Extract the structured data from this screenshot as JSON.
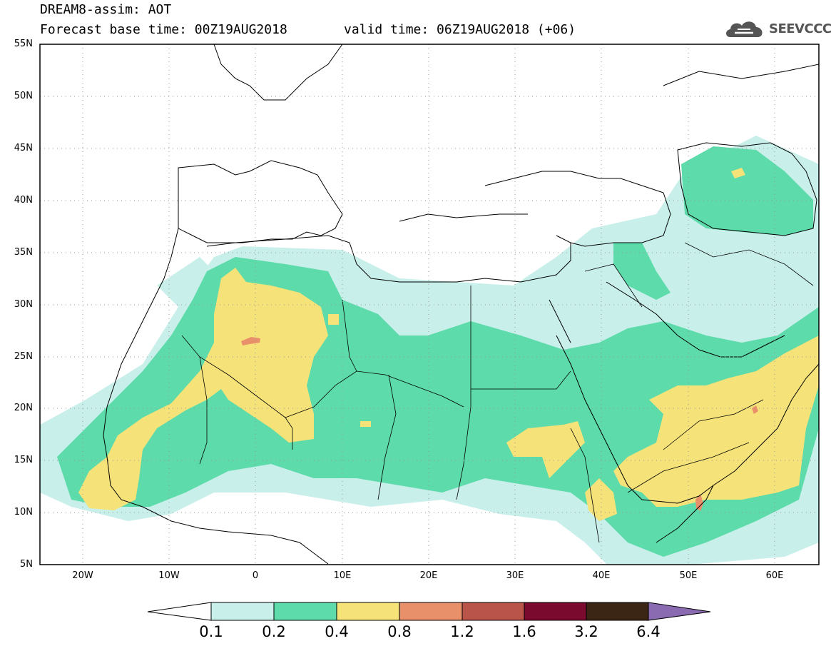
{
  "header": {
    "title": "DREAM8-assim: AOT",
    "base_time": "Forecast base time: 00Z19AUG2018",
    "valid_time": "valid time: 06Z19AUG2018 (+06)"
  },
  "logo": {
    "text": "SEEVCCC",
    "icon": "cloud-icon"
  },
  "map": {
    "lat_labels": [
      "55N",
      "50N",
      "45N",
      "40N",
      "35N",
      "30N",
      "25N",
      "20N",
      "15N",
      "10N",
      "5N"
    ],
    "lon_labels": [
      "20W",
      "10W",
      "0",
      "10E",
      "20E",
      "30E",
      "40E",
      "50E",
      "60E"
    ],
    "lon_range": [
      -25,
      65
    ],
    "lat_range": [
      5,
      55
    ],
    "grid": "dotted"
  },
  "colorbar": {
    "labels": [
      "0.1",
      "0.2",
      "0.4",
      "0.8",
      "1.2",
      "1.6",
      "3.2",
      "6.4"
    ],
    "colors": [
      "#ffffff",
      "#c8efea",
      "#5ddbab",
      "#f5e37a",
      "#e8906a",
      "#b8544a",
      "#7a0b2e",
      "#3b2515",
      "#8a6ab0"
    ]
  }
}
